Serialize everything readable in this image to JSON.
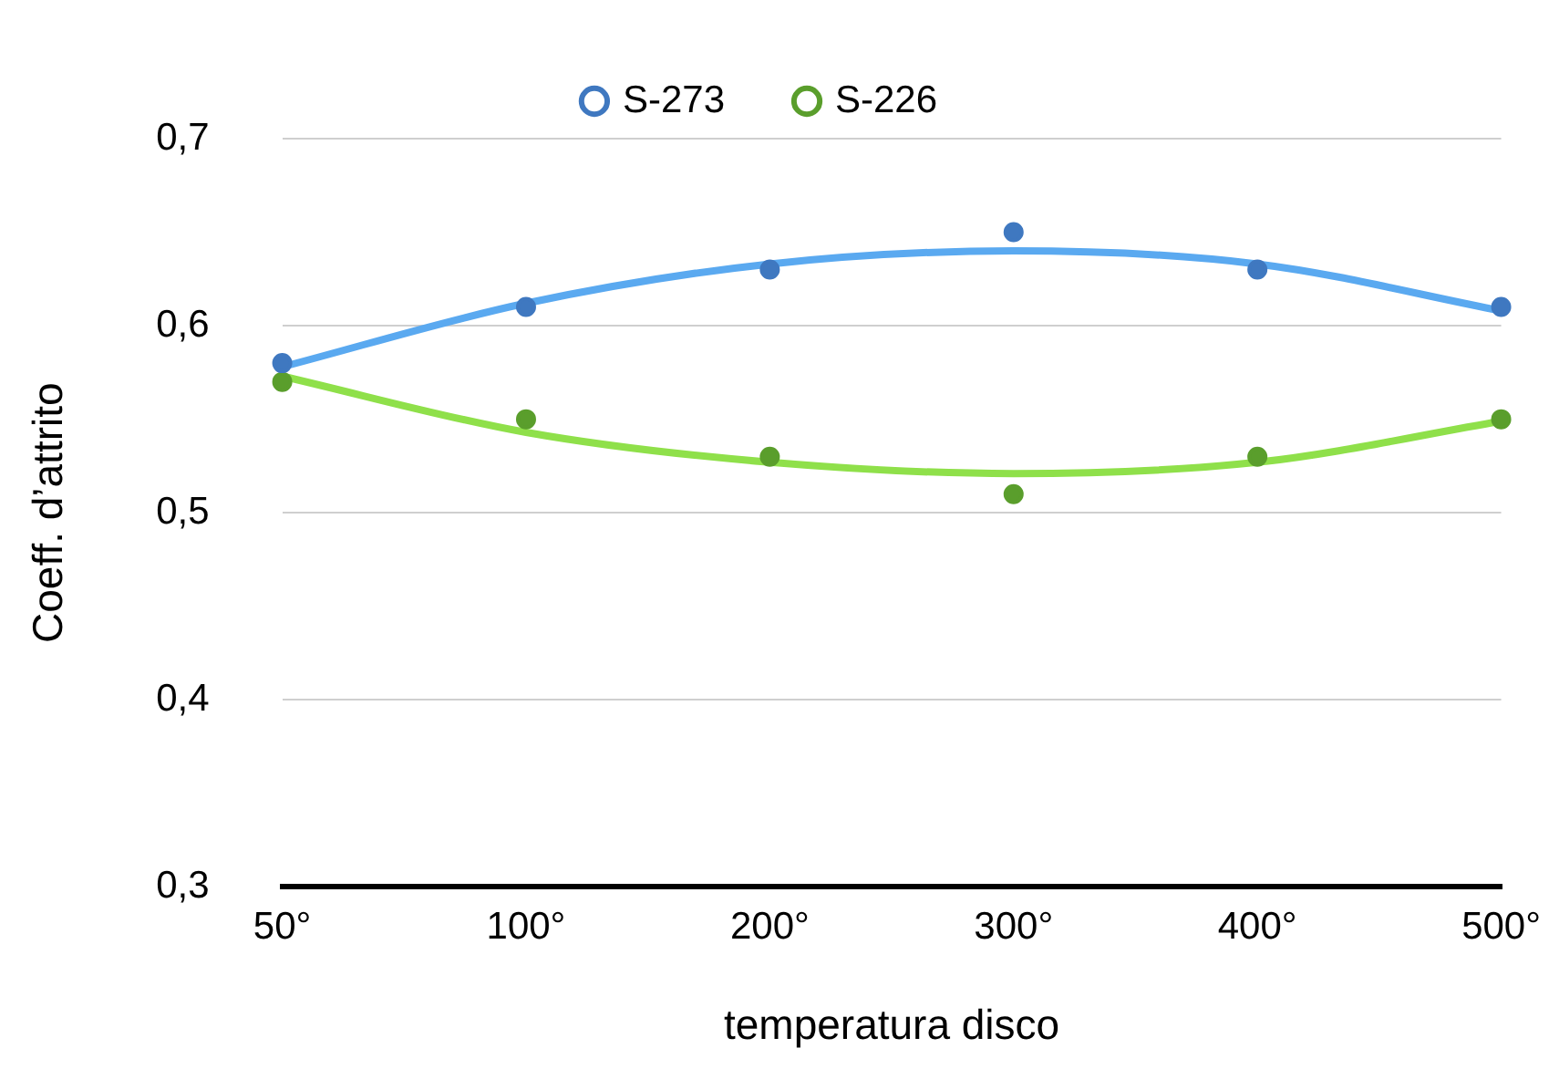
{
  "chart_data": {
    "type": "scatter",
    "xlabel": "temperatura disco",
    "ylabel": "Coeff. d’attrito",
    "categories": [
      "50°",
      "100°",
      "200°",
      "300°",
      "400°",
      "500°"
    ],
    "series": [
      {
        "name": "S-273",
        "color": "#3f78c0",
        "values": [
          0.58,
          0.61,
          0.63,
          0.65,
          0.63,
          0.61
        ]
      },
      {
        "name": "S-226",
        "color": "#5a9e2c",
        "values": [
          0.57,
          0.55,
          0.53,
          0.51,
          0.53,
          0.55
        ]
      },
      {
        "type": "line",
        "color": "#5aa9f0",
        "marker": "none",
        "values": [
          0.578,
          0.612,
          0.633,
          0.64,
          0.633,
          0.608
        ]
      },
      {
        "type": "line",
        "color": "#8fe04a",
        "marker": "none",
        "values": [
          0.573,
          0.543,
          0.527,
          0.521,
          0.527,
          0.549
        ]
      }
    ],
    "ylim": [
      0.3,
      0.7
    ],
    "yticks": [
      {
        "value": 0.3,
        "label": "0,3"
      },
      {
        "value": 0.4,
        "label": "0,4"
      },
      {
        "value": 0.5,
        "label": "0,5"
      },
      {
        "value": 0.6,
        "label": "0,6"
      },
      {
        "value": 0.7,
        "label": "0,7"
      }
    ],
    "grid": "y",
    "legend": "top",
    "marker": "circle",
    "line_style": "solid"
  }
}
